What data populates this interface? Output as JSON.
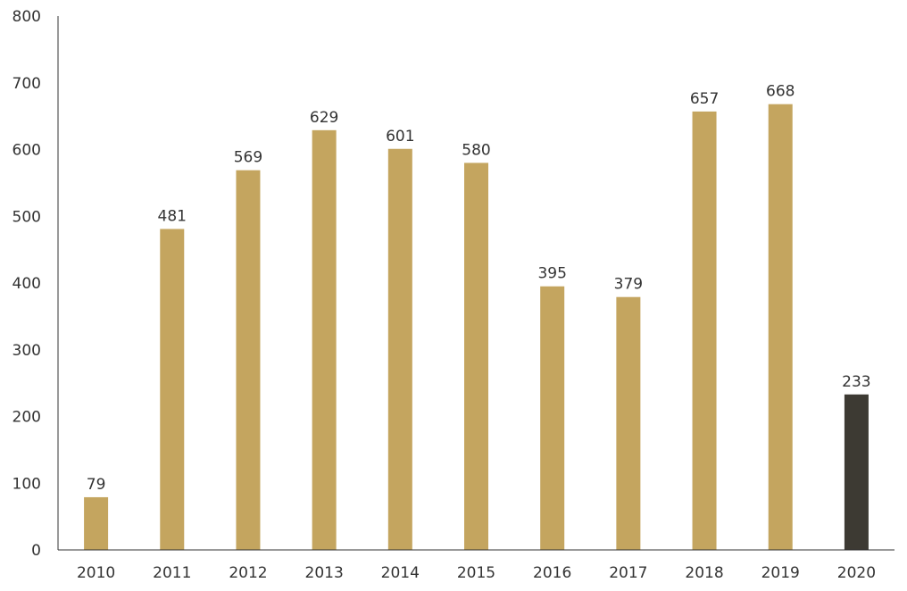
{
  "chart_data": {
    "type": "bar",
    "title": "",
    "xlabel": "",
    "ylabel": "",
    "categories": [
      "2010",
      "2011",
      "2012",
      "2013",
      "2014",
      "2015",
      "2016",
      "2017",
      "2018",
      "2019",
      "2020"
    ],
    "values": [
      79,
      481,
      569,
      629,
      601,
      580,
      395,
      379,
      657,
      668,
      233
    ],
    "data_labels": [
      "79",
      "481",
      "569",
      "629",
      "601",
      "580",
      "395",
      "379",
      "657",
      "668",
      "233"
    ],
    "ylim": [
      0,
      800
    ],
    "yticks": [
      0,
      100,
      200,
      300,
      400,
      500,
      600,
      700,
      800
    ],
    "ytick_labels": [
      "0",
      "100",
      "200",
      "300",
      "400",
      "500",
      "600",
      "700",
      "800"
    ],
    "grid": false,
    "legend": "none",
    "colors": {
      "bar": "#C4A55F",
      "highlight_bar": "#3D3A33",
      "axis": "#333333",
      "text": "#333333"
    },
    "highlight_categories": [
      "2020"
    ]
  }
}
